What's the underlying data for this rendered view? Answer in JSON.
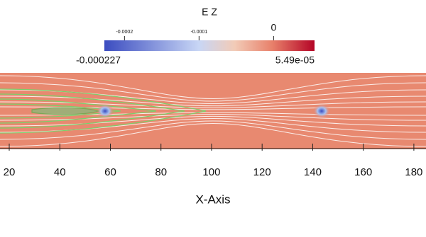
{
  "chart_data": {
    "type": "field",
    "colorbar_title": "E Z",
    "clim": [
      -0.000227,
      {
        "value": 5.49e-05,
        "label": "5.49e-05"
      }
    ],
    "cticks": [
      -0.0002,
      -0.0001,
      0
    ],
    "xlabel": "X-Axis",
    "xlim": [
      16.35,
      184.8
    ],
    "xticks": [
      20,
      40,
      60,
      80,
      100,
      120,
      140,
      160,
      180
    ]
  }
}
